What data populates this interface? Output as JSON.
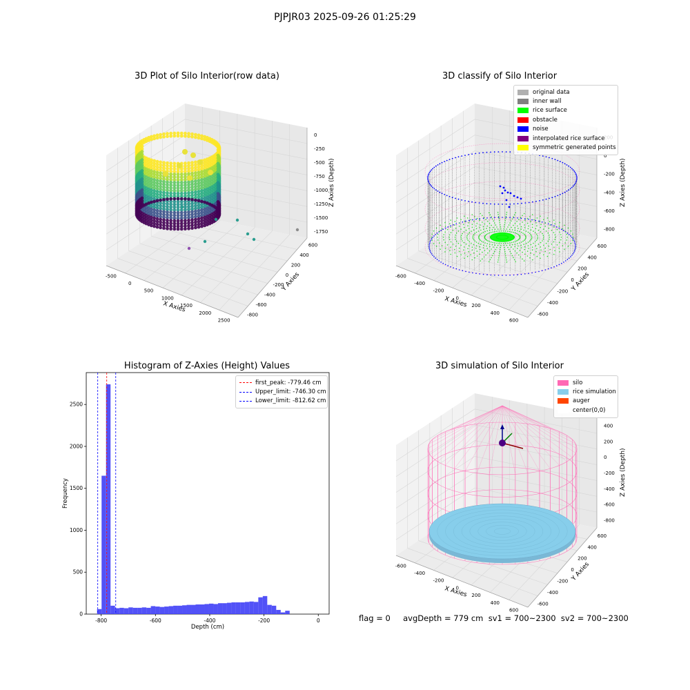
{
  "suptitle": "PJPJR03 2025-09-26 01:25:29",
  "footer": "flag = 0     avgDepth = 779 cm  sv1 = 700~2300  sv2 = 700~2300",
  "chart_data": [
    {
      "type": "scatter",
      "projection": "3d",
      "title": "3D Plot of Silo Interior(row data)",
      "xlabel": "X Axies",
      "ylabel": "Y Axies",
      "zlabel": "Z Axies (Depth)",
      "xticks": [
        "-500",
        "0",
        "500",
        "1000",
        "1500",
        "2000",
        "2500"
      ],
      "yticks": [
        "-800",
        "-600",
        "-400",
        "-200",
        "0",
        "200",
        "400",
        "600"
      ],
      "zticks": [
        "0",
        "-250",
        "-500",
        "-750",
        "-1000",
        "-1250",
        "-1500",
        "-1750"
      ],
      "colormap": "viridis",
      "colors": {
        "high": "#fde725",
        "mid": "#21918c",
        "low": "#440154"
      },
      "outliers": [
        {
          "x": 1000,
          "y": 200,
          "z": -1500
        },
        {
          "x": 1400,
          "y": 300,
          "z": -1450
        },
        {
          "x": 1900,
          "y": 400,
          "z": -1750
        },
        {
          "x": 1800,
          "y": 0,
          "z": -1600
        },
        {
          "x": 2000,
          "y": -100,
          "z": -1700
        },
        {
          "x": 900,
          "y": -300,
          "z": -1750
        },
        {
          "x": 600,
          "y": -400,
          "z": -1750
        }
      ]
    },
    {
      "type": "scatter",
      "projection": "3d",
      "title": "3D classify of Silo Interior",
      "xlabel": "X Axies",
      "ylabel": "Y Axies",
      "zlabel": "Z Axies (Depth)",
      "xticks": [
        "-600",
        "-400",
        "-200",
        "0",
        "200",
        "400",
        "600"
      ],
      "yticks": [
        "-600",
        "-400",
        "-200",
        "0",
        "200",
        "400",
        "600"
      ],
      "zticks": [
        "200",
        "0",
        "-200",
        "-400",
        "-600",
        "-800"
      ],
      "legend_position": "upper right",
      "legend": [
        {
          "label": "original data",
          "color": "#b0b0b0"
        },
        {
          "label": "inner wall",
          "color": "#808080"
        },
        {
          "label": "rice surface",
          "color": "#00ff00"
        },
        {
          "label": "obstacle",
          "color": "#ff0000"
        },
        {
          "label": "noise",
          "color": "#0000ff"
        },
        {
          "label": "interpolated rice surface",
          "color": "#800080"
        },
        {
          "label": "symmetric generated points",
          "color": "#ffff00"
        }
      ]
    },
    {
      "type": "bar",
      "title": "Histogram of Z-Axies (Height) Values",
      "xlabel": "Depth (cm)",
      "ylabel": "Frequency",
      "xlim": [
        -855,
        40
      ],
      "ylim": [
        0,
        2880
      ],
      "xticks": [
        -800,
        -600,
        -400,
        -200,
        0
      ],
      "yticks": [
        0,
        500,
        1000,
        1500,
        2000,
        2500
      ],
      "bar_color": "#3f3ff6",
      "bin_start": -815,
      "bin_width": 16.5,
      "values": [
        60,
        1650,
        2740,
        100,
        70,
        75,
        70,
        80,
        75,
        75,
        80,
        75,
        95,
        90,
        85,
        90,
        95,
        100,
        100,
        105,
        110,
        110,
        115,
        115,
        120,
        125,
        120,
        130,
        130,
        135,
        140,
        140,
        140,
        145,
        150,
        145,
        200,
        215,
        110,
        100,
        50,
        20,
        40
      ],
      "vlines": [
        {
          "label": "first_peak: -779.46 cm",
          "x": -779.46,
          "color": "#ff0000"
        },
        {
          "label": "Upper_limit: -746.30 cm",
          "x": -746.3,
          "color": "#0000ff"
        },
        {
          "label": "Lower_limit: -812.62 cm",
          "x": -812.62,
          "color": "#0000ff"
        }
      ],
      "legend_position": "upper right",
      "grid": false
    },
    {
      "type": "scatter",
      "projection": "3d",
      "title": "3D simulation of Silo Interior",
      "xlabel": "X Axies",
      "ylabel": "Y Axies",
      "zlabel": "Z Axies (Depth)",
      "xticks": [
        "-600",
        "-400",
        "-200",
        "0",
        "200",
        "400",
        "600"
      ],
      "yticks": [
        "-600",
        "-400",
        "-200",
        "0",
        "200",
        "400",
        "600"
      ],
      "zticks": [
        "400",
        "200",
        "0",
        "-200",
        "-400",
        "-600",
        "-800"
      ],
      "legend_position": "upper right",
      "legend": [
        {
          "label": "silo",
          "color": "#ff69b4"
        },
        {
          "label": "rice simulation",
          "color": "#87ceeb"
        },
        {
          "label": "auger",
          "color": "#ff4500"
        },
        {
          "label": "center(0,0)",
          "color": "#ffffff"
        }
      ]
    }
  ]
}
